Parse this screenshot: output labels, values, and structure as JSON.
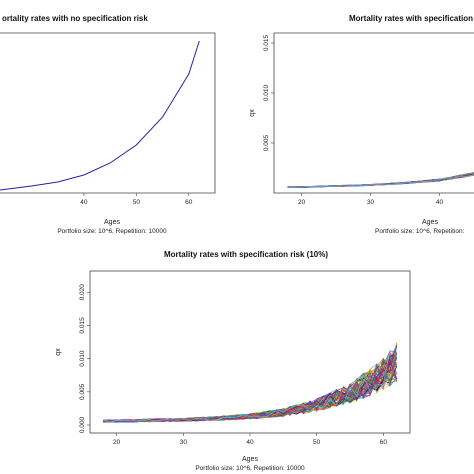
{
  "chart_data": [
    {
      "type": "line",
      "title": "ortality rates with no specification risk",
      "xlabel": "Ages",
      "ylabel": "",
      "caption": "Portfolio size: 10^6, Repetition: 10000",
      "x_ticks": [
        40,
        50,
        60
      ],
      "y_ticks": [],
      "xlim": [
        24,
        65
      ],
      "ylim": [
        0,
        0.016
      ],
      "series_color": "#2222aa",
      "x": [
        24,
        30,
        35,
        40,
        45,
        50,
        55,
        60,
        62
      ],
      "y": [
        0.0003,
        0.0007,
        0.0011,
        0.0018,
        0.003,
        0.0048,
        0.0076,
        0.0119,
        0.0152
      ]
    },
    {
      "type": "line",
      "title": "Mortality rates with specification",
      "xlabel": "Ages",
      "ylabel": "qx",
      "caption": "Portfolio size: 10^6, Repetition:",
      "x_ticks": [
        20,
        30,
        40
      ],
      "y_ticks": [
        0.005,
        0.01,
        0.015
      ],
      "y_tick_labels": [
        "0.005",
        "0.010",
        "0.015"
      ],
      "xlim": [
        16,
        45
      ],
      "ylim": [
        0.0,
        0.016
      ],
      "center_x": [
        18,
        20,
        25,
        30,
        35,
        40,
        45,
        50,
        55,
        60,
        62
      ],
      "center_y": [
        0.0006,
        0.0006,
        0.0007,
        0.0008,
        0.001,
        0.0013,
        0.0019,
        0.003,
        0.0048,
        0.0076,
        0.0095
      ],
      "spread": 0.05
    },
    {
      "type": "line",
      "title": "Mortality rates with specification risk (10%)",
      "xlabel": "Ages",
      "ylabel": "qx",
      "caption": "Portfolio size: 10^6, Repetition: 10000",
      "x_ticks": [
        20,
        30,
        40,
        50,
        60
      ],
      "y_ticks": [
        0.0,
        0.005,
        0.01,
        0.015,
        0.02
      ],
      "y_tick_labels": [
        "0.000",
        "0.005",
        "0.010",
        "0.015",
        "0.020"
      ],
      "xlim": [
        16,
        64
      ],
      "ylim": [
        -0.0012,
        0.0232
      ],
      "center_x": [
        18,
        20,
        25,
        30,
        35,
        40,
        45,
        50,
        55,
        60,
        62
      ],
      "center_y": [
        0.0006,
        0.0006,
        0.0007,
        0.0008,
        0.001,
        0.0013,
        0.0019,
        0.003,
        0.0048,
        0.0076,
        0.0095
      ],
      "spread": 0.2
    }
  ]
}
